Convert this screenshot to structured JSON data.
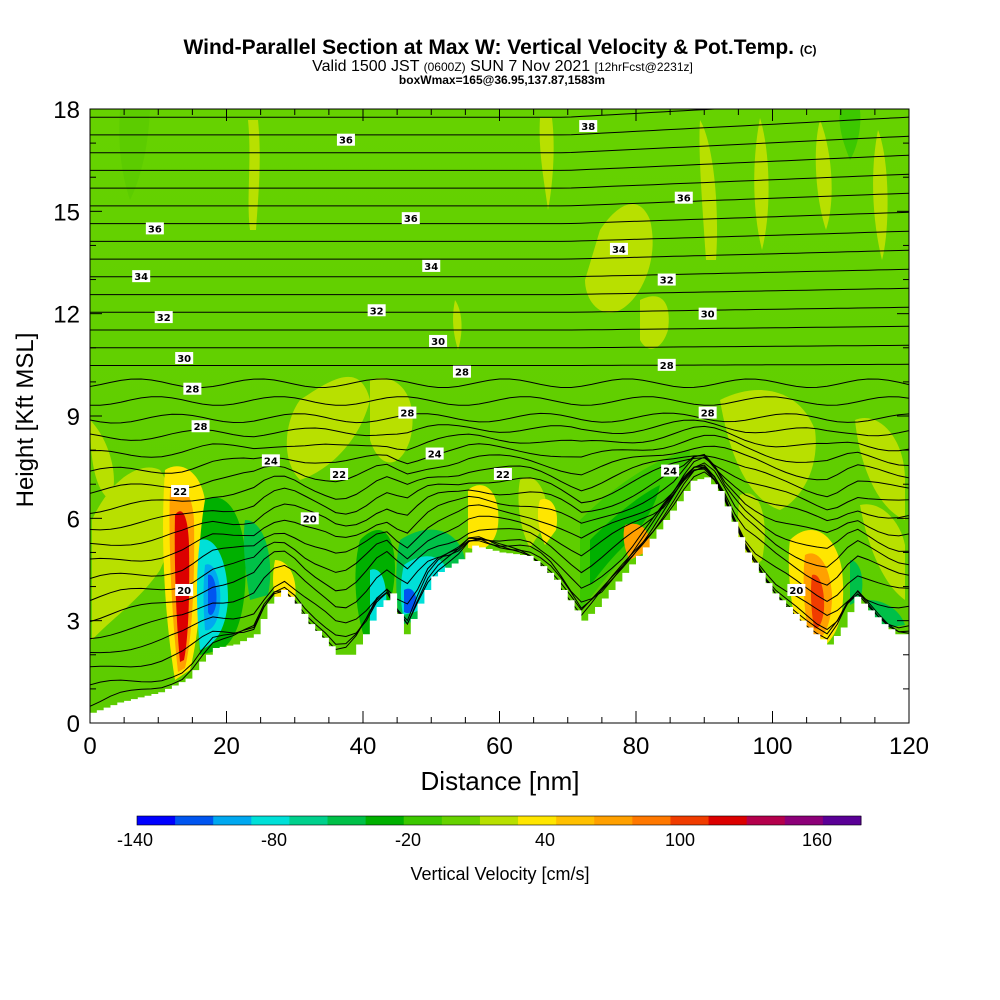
{
  "title": {
    "main": "Wind-Parallel Section at Max W: Vertical Velocity & Pot.Temp.",
    "copyright": "(C)",
    "valid_prefix": "Valid 1500 JST",
    "valid_utc": "(0600Z)",
    "valid_date": "SUN 7 Nov 2021",
    "forecast": "[12hrFcst@2231z]",
    "box_info": "boxWmax=165@36.95,137.87,1583m"
  },
  "chart_data": {
    "type": "heatmap",
    "xlabel": "Distance [nm]",
    "ylabel": "Height [Kft MSL]",
    "xlim": [
      0,
      120
    ],
    "ylim": [
      0,
      18
    ],
    "x_ticks": [
      "0",
      "20",
      "40",
      "60",
      "80",
      "100",
      "120"
    ],
    "y_ticks": [
      "0",
      "3",
      "6",
      "9",
      "12",
      "15",
      "18"
    ],
    "colorbar": {
      "label": "Vertical Velocity [cm/s]",
      "tick_labels": [
        "-140",
        "-80",
        "-20",
        "40",
        "100",
        "160"
      ],
      "colors": [
        "#0000ff",
        "#0055f0",
        "#00a8f0",
        "#00e0d8",
        "#00d08c",
        "#00c048",
        "#00b000",
        "#3cc800",
        "#66d200",
        "#b8e000",
        "#ffe600",
        "#ffc000",
        "#ffa000",
        "#ff7800",
        "#f03c00",
        "#dc0000",
        "#b4004c",
        "#8c0078",
        "#5a0096"
      ]
    },
    "terrain_profile": {
      "x": [
        0,
        4,
        10,
        14,
        16,
        18,
        21,
        24,
        26,
        28,
        30,
        32,
        34,
        36,
        38,
        40,
        42,
        44,
        46,
        48,
        50,
        54,
        56,
        58,
        60,
        64,
        66,
        68,
        70,
        72,
        74,
        78,
        82,
        86,
        88,
        90,
        92,
        96,
        100,
        104,
        106,
        108,
        110,
        112,
        114,
        116,
        118,
        120
      ],
      "height_kft": [
        0.3,
        0.6,
        0.9,
        1.3,
        1.8,
        2.2,
        2.3,
        2.6,
        3.5,
        3.9,
        3.5,
        2.9,
        2.5,
        2.0,
        2.0,
        2.6,
        3.4,
        3.8,
        2.6,
        3.5,
        4.3,
        4.8,
        5.2,
        5.1,
        5.0,
        4.9,
        4.6,
        4.2,
        3.6,
        3.0,
        3.4,
        4.4,
        5.4,
        6.5,
        7.1,
        7.2,
        6.8,
        5.0,
        3.8,
        3.0,
        2.6,
        2.3,
        2.8,
        3.7,
        3.3,
        2.9,
        2.6,
        2.6
      ]
    },
    "contour_labels": [
      {
        "value": "36",
        "x": 37.5,
        "y": 17.1
      },
      {
        "value": "38",
        "x": 73,
        "y": 17.5
      },
      {
        "value": "36",
        "x": 87,
        "y": 15.4
      },
      {
        "value": "36",
        "x": 9.5,
        "y": 14.5
      },
      {
        "value": "36",
        "x": 47,
        "y": 14.8
      },
      {
        "value": "34",
        "x": 7.5,
        "y": 13.1
      },
      {
        "value": "34",
        "x": 50,
        "y": 13.4
      },
      {
        "value": "34",
        "x": 77.5,
        "y": 13.9
      },
      {
        "value": "32",
        "x": 84.5,
        "y": 13.0
      },
      {
        "value": "32",
        "x": 10.8,
        "y": 11.9
      },
      {
        "value": "32",
        "x": 42,
        "y": 12.1
      },
      {
        "value": "30",
        "x": 90.5,
        "y": 12.0
      },
      {
        "value": "30",
        "x": 13.8,
        "y": 10.7
      },
      {
        "value": "30",
        "x": 51,
        "y": 11.2
      },
      {
        "value": "28",
        "x": 15,
        "y": 9.8
      },
      {
        "value": "28",
        "x": 54.5,
        "y": 10.3
      },
      {
        "value": "28",
        "x": 84.5,
        "y": 10.5
      },
      {
        "value": "28",
        "x": 46.5,
        "y": 9.1
      },
      {
        "value": "28",
        "x": 90.5,
        "y": 9.1
      },
      {
        "value": "28",
        "x": 16.2,
        "y": 8.7
      },
      {
        "value": "24",
        "x": 26.5,
        "y": 7.7
      },
      {
        "value": "24",
        "x": 50.5,
        "y": 7.9
      },
      {
        "value": "24",
        "x": 85,
        "y": 7.4
      },
      {
        "value": "22",
        "x": 36.5,
        "y": 7.3
      },
      {
        "value": "22",
        "x": 60.5,
        "y": 7.3
      },
      {
        "value": "22",
        "x": 13.2,
        "y": 6.8
      },
      {
        "value": "20",
        "x": 32.2,
        "y": 6.0
      },
      {
        "value": "20",
        "x": 13.8,
        "y": 3.9
      },
      {
        "value": "20",
        "x": 103.5,
        "y": 3.9
      }
    ]
  }
}
